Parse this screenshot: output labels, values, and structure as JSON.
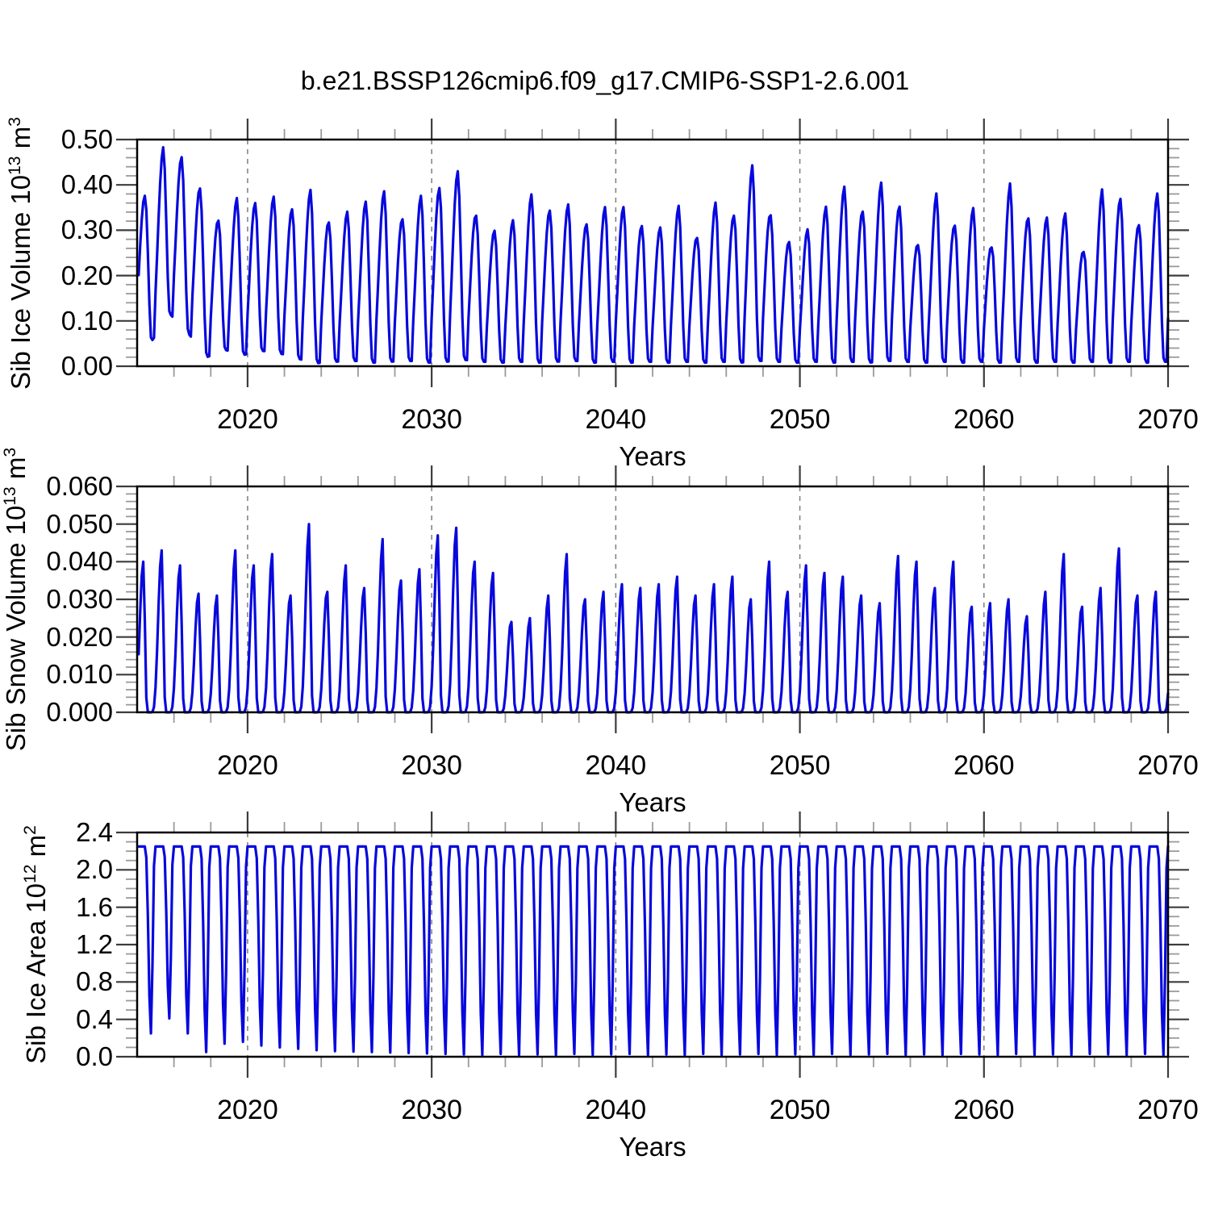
{
  "title": "b.e21.BSSP126cmip6.f09_g17.CMIP6-SSP1-2.6.001",
  "colors": {
    "line": "#0808dd",
    "grid": "#7d7d7d",
    "frame": "#000000",
    "tick_major": "#3c3c3c",
    "tick_minor": "#9a9a9a",
    "text": "#000000",
    "background": "#ffffff"
  },
  "x_axis": {
    "label": "Years",
    "range": [
      2014,
      2070
    ],
    "major_ticks": [
      2020,
      2030,
      2040,
      2050,
      2060,
      2070
    ],
    "tick_labels": [
      "2020",
      "2030",
      "2040",
      "2050",
      "2060",
      "2070"
    ],
    "minor_step": 2,
    "gridlines": [
      2020,
      2030,
      2040,
      2050,
      2060
    ]
  },
  "chart_data": [
    {
      "type": "line",
      "ylabel": "Sib Ice Volume 10¹³ m³",
      "xlabel": "Years",
      "y_range": [
        0.0,
        0.5
      ],
      "y_major_step": 0.1,
      "y_minor_step": 0.02,
      "y_tick_labels": [
        "0.00",
        "0.10",
        "0.20",
        "0.30",
        "0.40",
        "0.50"
      ],
      "legend": "none",
      "grid": "vertical-dashed",
      "series": {
        "name": "Sib Ice Volume",
        "cadence": "monthly seasonal cycle",
        "start_year": 2014,
        "end_year": 2070,
        "peak_phase": 0.4167,
        "rise_width": 0.63,
        "fall_width": 0.37,
        "sharpness": 1.0,
        "inverted": false,
        "annual_max": [
          0.376,
          0.483,
          0.461,
          0.392,
          0.321,
          0.371,
          0.36,
          0.374,
          0.346,
          0.389,
          0.317,
          0.341,
          0.363,
          0.386,
          0.324,
          0.376,
          0.393,
          0.43,
          0.332,
          0.299,
          0.322,
          0.379,
          0.343,
          0.357,
          0.313,
          0.351,
          0.351,
          0.309,
          0.306,
          0.354,
          0.283,
          0.361,
          0.332,
          0.443,
          0.333,
          0.274,
          0.302,
          0.352,
          0.396,
          0.341,
          0.405,
          0.352,
          0.267,
          0.381,
          0.31,
          0.349,
          0.262,
          0.403,
          0.326,
          0.328,
          0.337,
          0.252,
          0.39,
          0.369,
          0.311,
          0.381
        ],
        "annual_min": [
          0.055,
          0.115,
          0.072,
          0.02,
          0.036,
          0.025,
          0.034,
          0.028,
          0.016,
          0.007,
          0.01,
          0.012,
          0.008,
          0.01,
          0.012,
          0.008,
          0.01,
          0.014,
          0.01,
          0.008,
          0.01,
          0.008,
          0.01,
          0.012,
          0.008,
          0.01,
          0.008,
          0.01,
          0.008,
          0.01,
          0.008,
          0.01,
          0.008,
          0.012,
          0.01,
          0.008,
          0.01,
          0.008,
          0.01,
          0.008,
          0.012,
          0.01,
          0.008,
          0.01,
          0.008,
          0.01,
          0.008,
          0.01,
          0.008,
          0.01,
          0.008,
          0.01,
          0.008,
          0.01,
          0.008,
          0.01
        ]
      }
    },
    {
      "type": "line",
      "ylabel": "Sib Snow Volume 10¹³ m³",
      "xlabel": "Years",
      "y_range": [
        0.0,
        0.06
      ],
      "y_major_step": 0.01,
      "y_minor_step": 0.002,
      "y_tick_labels": [
        "0.000",
        "0.010",
        "0.020",
        "0.030",
        "0.040",
        "0.050",
        "0.060"
      ],
      "legend": "none",
      "grid": "vertical-dashed",
      "series": {
        "name": "Sib Snow Volume",
        "cadence": "monthly seasonal cycle",
        "start_year": 2014,
        "end_year": 2070,
        "peak_phase": 0.3333,
        "rise_width": 0.55,
        "fall_width": 0.25,
        "sharpness": 1.7,
        "inverted": false,
        "annual_max": [
          0.04,
          0.043,
          0.039,
          0.0315,
          0.031,
          0.043,
          0.039,
          0.042,
          0.031,
          0.05,
          0.032,
          0.039,
          0.033,
          0.046,
          0.035,
          0.038,
          0.047,
          0.049,
          0.04,
          0.037,
          0.024,
          0.025,
          0.031,
          0.042,
          0.03,
          0.032,
          0.034,
          0.033,
          0.034,
          0.036,
          0.031,
          0.034,
          0.036,
          0.03,
          0.04,
          0.032,
          0.039,
          0.037,
          0.036,
          0.031,
          0.029,
          0.0415,
          0.04,
          0.033,
          0.04,
          0.028,
          0.029,
          0.03,
          0.0255,
          0.032,
          0.042,
          0.028,
          0.033,
          0.0435,
          0.031,
          0.032
        ],
        "annual_min": [
          0,
          0,
          0,
          0,
          0,
          0,
          0,
          0,
          0,
          0,
          0,
          0,
          0,
          0,
          0,
          0,
          0,
          0,
          0,
          0,
          0,
          0,
          0,
          0,
          0,
          0,
          0,
          0,
          0,
          0,
          0,
          0,
          0,
          0,
          0,
          0,
          0,
          0,
          0,
          0,
          0,
          0,
          0,
          0,
          0,
          0,
          0,
          0,
          0,
          0,
          0,
          0,
          0,
          0,
          0,
          0
        ]
      }
    },
    {
      "type": "line",
      "ylabel": "Sib Ice Area 10¹² m²",
      "xlabel": "Years",
      "y_range": [
        0.0,
        2.4
      ],
      "y_major_step": 0.4,
      "y_minor_step": 0.1,
      "y_tick_labels": [
        "0.0",
        "0.4",
        "0.8",
        "1.2",
        "1.6",
        "2.0",
        "2.4"
      ],
      "legend": "none",
      "grid": "vertical-dashed",
      "series": {
        "name": "Sib Ice Area",
        "cadence": "monthly seasonal cycle",
        "start_year": 2014,
        "end_year": 2070,
        "peak_phase": 0.75,
        "rise_width": 0.32,
        "fall_width": 0.23,
        "sharpness": 1.3,
        "inverted": true,
        "plateau": 2.25,
        "annual_min": [
          0.25,
          0.41,
          0.25,
          0.05,
          0.14,
          0.16,
          0.12,
          0.1,
          0.085,
          0.07,
          0.06,
          0.055,
          0.05,
          0.045,
          0.04,
          0.035,
          0.03,
          0.025,
          0.02,
          0.03,
          0.02,
          0.025,
          0.02,
          0.03,
          0.02,
          0.025,
          0.03,
          0.02,
          0.025,
          0.02,
          0.03,
          0.02,
          0.025,
          0.03,
          0.02,
          0.025,
          0.02,
          0.03,
          0.02,
          0.025,
          0.03,
          0.02,
          0.025,
          0.02,
          0.03,
          0.025,
          0.02,
          0.03,
          0.02,
          0.025,
          0.02,
          0.03,
          0.025,
          0.02,
          0.03,
          0.02
        ]
      }
    }
  ]
}
